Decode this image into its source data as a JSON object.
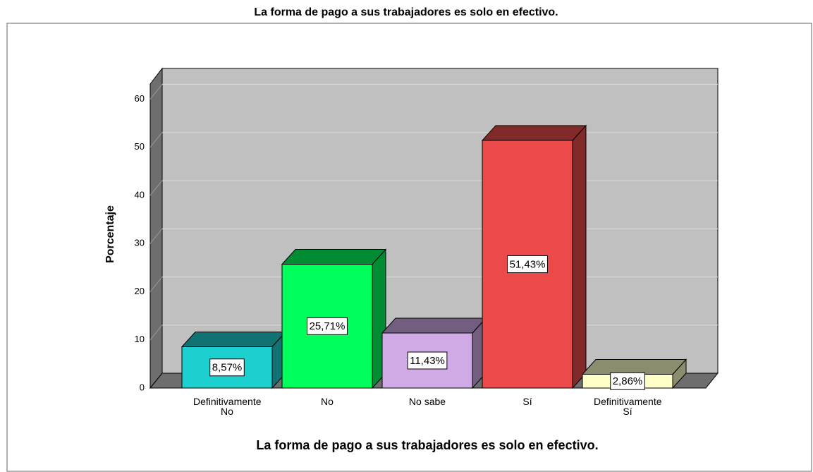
{
  "chart_data": {
    "type": "bar",
    "title": "La forma de pago a sus trabajadores es solo en efectivo.",
    "x_label": "La forma de pago a sus trabajadores es solo en efectivo.",
    "y_label": "Porcentaje",
    "categories": [
      "Definitivamente No",
      "No",
      "No sabe",
      "Sí",
      "Definitivamente Sí"
    ],
    "values": [
      8.57,
      25.71,
      11.43,
      51.43,
      2.86
    ],
    "value_labels": [
      "8,57%",
      "25,71%",
      "11,43%",
      "51,43%",
      "2,86%"
    ],
    "colors": [
      "#1dd0d0",
      "#00ff5c",
      "#cfaae6",
      "#ec4a4a",
      "#ffffc8"
    ],
    "ylim": [
      0,
      63
    ],
    "yticks": [
      0,
      10,
      20,
      30,
      40,
      50,
      60
    ],
    "grid": true
  }
}
